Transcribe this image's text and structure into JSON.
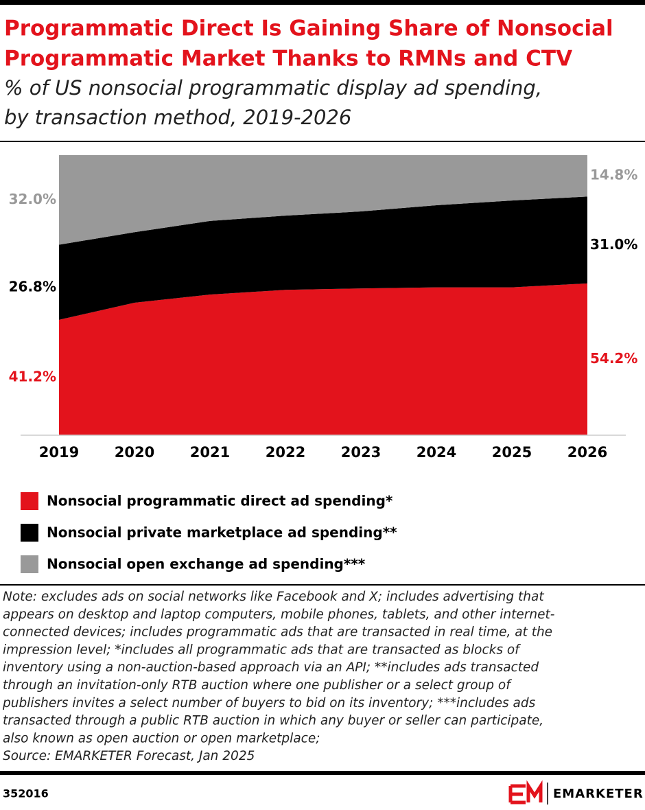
{
  "chart_data": {
    "type": "stacked-area-percent",
    "title": [
      "Programmatic Direct Is Gaining Share of Nonsocial",
      "Programmatic Market Thanks to RMNs and CTV"
    ],
    "subtitle": [
      "% of US nonsocial programmatic display ad spending,",
      "by transaction method, 2019-2026"
    ],
    "categories": [
      "2019",
      "2020",
      "2021",
      "2022",
      "2023",
      "2024",
      "2025",
      "2026"
    ],
    "ylim": [
      0,
      100
    ],
    "series": [
      {
        "name": "Nonsocial programmatic direct ad spending*",
        "color": "#e3131c",
        "values": [
          41.2,
          47.3,
          50.2,
          51.9,
          52.4,
          52.8,
          52.8,
          54.2
        ],
        "value_labels": [
          "41.2%",
          null,
          null,
          null,
          null,
          null,
          null,
          "54.2%"
        ]
      },
      {
        "name": "Nonsocial private marketplace ad spending**",
        "color": "#000000",
        "values": [
          26.8,
          25.2,
          26.3,
          26.5,
          27.5,
          29.3,
          31.0,
          31.0
        ],
        "value_labels": [
          "26.8%",
          null,
          null,
          null,
          null,
          null,
          null,
          "31.0%"
        ]
      },
      {
        "name": "Nonsocial open exchange ad spending***",
        "color": "#999999",
        "values": [
          32.0,
          27.5,
          23.5,
          21.6,
          20.1,
          17.9,
          16.2,
          14.8
        ],
        "value_labels": [
          "32.0%",
          null,
          null,
          null,
          null,
          null,
          null,
          "14.8%"
        ]
      }
    ],
    "note": [
      "Note: excludes ads on social networks like Facebook and X; includes advertising that",
      "appears on desktop and laptop computers, mobile phones, tablets, and other internet-",
      "connected devices; includes programmatic ads that are transacted in real time, at the",
      "impression level; *includes all programmatic ads that are transacted as blocks of",
      "inventory using a non-auction-based approach via an API; **includes ads transacted",
      "through an invitation-only RTB auction where one publisher or a select group of",
      "publishers invites a select number of buyers to bid on its inventory; ***includes ads",
      "transacted through a public RTB auction in which any buyer or seller can participate,",
      "also known as open auction or open marketplace;"
    ],
    "source": "Source: EMARKETER Forecast, Jan 2025",
    "chart_id": "352016",
    "brand": "EMARKETER"
  }
}
